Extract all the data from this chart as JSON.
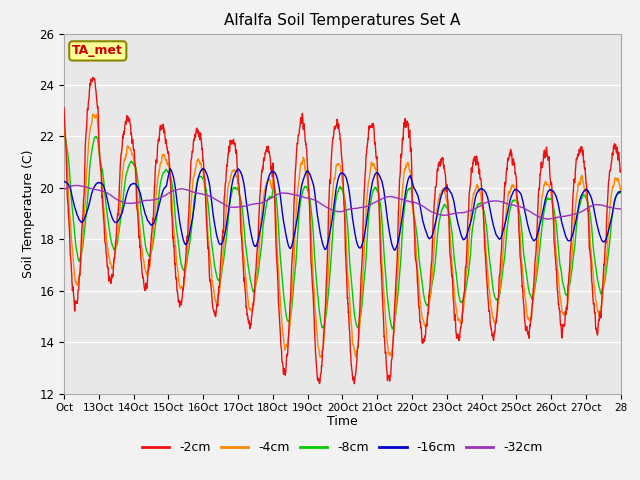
{
  "title": "Alfalfa Soil Temperatures Set A",
  "xlabel": "Time",
  "ylabel": "Soil Temperature (C)",
  "ylim": [
    12,
    26
  ],
  "yticks": [
    12,
    14,
    16,
    18,
    20,
    22,
    24,
    26
  ],
  "x_labels": [
    "Oct",
    "13Oct",
    "14Oct",
    "15Oct",
    "16Oct",
    "17Oct",
    "18Oct",
    "19Oct",
    "20Oct",
    "21Oct",
    "22Oct",
    "23Oct",
    "24Oct",
    "25Oct",
    "26Oct",
    "27Oct",
    "28"
  ],
  "colors": {
    "-2cm": "#ee1111",
    "-4cm": "#ff8800",
    "-8cm": "#00cc00",
    "-16cm": "#0000cc",
    "-32cm": "#9933bb"
  },
  "legend_label": "TA_met",
  "legend_box_facecolor": "#ffff99",
  "legend_box_edgecolor": "#888800",
  "legend_text_color": "#cc0000",
  "plot_bg": "#e8e8e8",
  "fig_bg": "#f2f2f2",
  "grid_color": "#ffffff"
}
